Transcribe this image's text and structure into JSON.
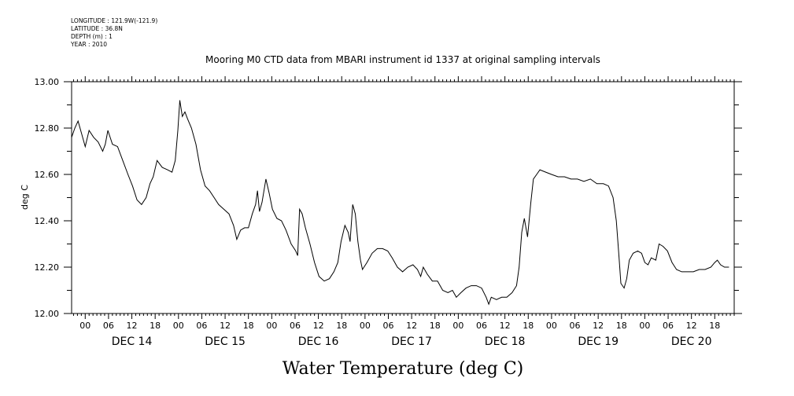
{
  "meta": {
    "longitude": "LONGITUDE : 121.9W(-121.9)",
    "latitude": "LATITUDE : 36.8N",
    "depth": "DEPTH (m) : 1",
    "year": "YEAR : 2010"
  },
  "chart_data": {
    "type": "line",
    "title": "Mooring M0 CTD data from MBARI instrument id 1337 at original sampling intervals",
    "xlabel": "Water Temperature (deg C)",
    "ylabel": "deg C",
    "ylim": [
      12.0,
      13.0
    ],
    "yticks": [
      "12.00",
      "12.20",
      "12.40",
      "12.60",
      "12.80",
      "13.00"
    ],
    "xlim": [
      "2010-12-13T20:30",
      "2010-12-20T23:00"
    ],
    "hour_labels": [
      "00",
      "06",
      "12",
      "18"
    ],
    "days": [
      {
        "date": "2010-12-14",
        "label": "DEC 14"
      },
      {
        "date": "2010-12-15",
        "label": "DEC 15"
      },
      {
        "date": "2010-12-16",
        "label": "DEC 16"
      },
      {
        "date": "2010-12-17",
        "label": "DEC 17"
      },
      {
        "date": "2010-12-18",
        "label": "DEC 18"
      },
      {
        "date": "2010-12-19",
        "label": "DEC 19"
      },
      {
        "date": "2010-12-20",
        "label": "DEC 20"
      }
    ],
    "grid": false,
    "series": [
      {
        "color": "#000000",
        "points": [
          [
            "2010-12-13T20:30",
            12.76
          ],
          [
            "2010-12-13T21:20",
            12.8
          ],
          [
            "2010-12-13T22:10",
            12.83
          ],
          [
            "2010-12-13T23:20",
            12.76
          ],
          [
            "2010-12-14T00:00",
            12.72
          ],
          [
            "2010-12-14T01:00",
            12.79
          ],
          [
            "2010-12-14T02:10",
            12.76
          ],
          [
            "2010-12-14T03:20",
            12.74
          ],
          [
            "2010-12-14T04:30",
            12.7
          ],
          [
            "2010-12-14T05:10",
            12.73
          ],
          [
            "2010-12-14T05:50",
            12.79
          ],
          [
            "2010-12-14T07:00",
            12.73
          ],
          [
            "2010-12-14T08:20",
            12.72
          ],
          [
            "2010-12-14T09:40",
            12.66
          ],
          [
            "2010-12-14T11:00",
            12.6
          ],
          [
            "2010-12-14T12:10",
            12.55
          ],
          [
            "2010-12-14T13:20",
            12.49
          ],
          [
            "2010-12-14T14:30",
            12.47
          ],
          [
            "2010-12-14T15:40",
            12.5
          ],
          [
            "2010-12-14T16:40",
            12.56
          ],
          [
            "2010-12-14T17:30",
            12.59
          ],
          [
            "2010-12-14T18:30",
            12.66
          ],
          [
            "2010-12-14T19:50",
            12.63
          ],
          [
            "2010-12-14T21:10",
            12.62
          ],
          [
            "2010-12-14T22:20",
            12.61
          ],
          [
            "2010-12-14T23:10",
            12.66
          ],
          [
            "2010-12-14T23:50",
            12.79
          ],
          [
            "2010-12-15T00:20",
            12.92
          ],
          [
            "2010-12-15T01:00",
            12.85
          ],
          [
            "2010-12-15T01:40",
            12.87
          ],
          [
            "2010-12-15T02:20",
            12.84
          ],
          [
            "2010-12-15T03:20",
            12.8
          ],
          [
            "2010-12-15T04:30",
            12.73
          ],
          [
            "2010-12-15T05:40",
            12.62
          ],
          [
            "2010-12-15T06:50",
            12.55
          ],
          [
            "2010-12-15T08:00",
            12.53
          ],
          [
            "2010-12-15T09:10",
            12.5
          ],
          [
            "2010-12-15T10:20",
            12.47
          ],
          [
            "2010-12-15T11:40",
            12.45
          ],
          [
            "2010-12-15T13:00",
            12.43
          ],
          [
            "2010-12-15T14:10",
            12.38
          ],
          [
            "2010-12-15T15:00",
            12.32
          ],
          [
            "2010-12-15T16:00",
            12.36
          ],
          [
            "2010-12-15T17:00",
            12.37
          ],
          [
            "2010-12-15T18:00",
            12.37
          ],
          [
            "2010-12-15T19:00",
            12.43
          ],
          [
            "2010-12-15T19:50",
            12.47
          ],
          [
            "2010-12-15T20:20",
            12.53
          ],
          [
            "2010-12-15T20:50",
            12.44
          ],
          [
            "2010-12-15T21:30",
            12.48
          ],
          [
            "2010-12-15T22:30",
            12.58
          ],
          [
            "2010-12-15T23:20",
            12.52
          ],
          [
            "2010-12-16T00:10",
            12.45
          ],
          [
            "2010-12-16T01:20",
            12.41
          ],
          [
            "2010-12-16T02:30",
            12.4
          ],
          [
            "2010-12-16T03:40",
            12.36
          ],
          [
            "2010-12-16T05:00",
            12.3
          ],
          [
            "2010-12-16T06:10",
            12.27
          ],
          [
            "2010-12-16T06:40",
            12.25
          ],
          [
            "2010-12-16T07:10",
            12.45
          ],
          [
            "2010-12-16T07:50",
            12.43
          ],
          [
            "2010-12-16T08:40",
            12.37
          ],
          [
            "2010-12-16T09:50",
            12.3
          ],
          [
            "2010-12-16T11:00",
            12.22
          ],
          [
            "2010-12-16T12:10",
            12.16
          ],
          [
            "2010-12-16T13:30",
            12.14
          ],
          [
            "2010-12-16T14:50",
            12.15
          ],
          [
            "2010-12-16T16:00",
            12.18
          ],
          [
            "2010-12-16T17:00",
            12.22
          ],
          [
            "2010-12-16T17:50",
            12.31
          ],
          [
            "2010-12-16T18:50",
            12.38
          ],
          [
            "2010-12-16T19:40",
            12.35
          ],
          [
            "2010-12-16T20:10",
            12.31
          ],
          [
            "2010-12-16T20:50",
            12.47
          ],
          [
            "2010-12-16T21:30",
            12.43
          ],
          [
            "2010-12-16T22:10",
            12.31
          ],
          [
            "2010-12-16T22:50",
            12.23
          ],
          [
            "2010-12-16T23:20",
            12.19
          ],
          [
            "2010-12-17T00:30",
            12.22
          ],
          [
            "2010-12-17T01:50",
            12.26
          ],
          [
            "2010-12-17T03:10",
            12.28
          ],
          [
            "2010-12-17T04:30",
            12.28
          ],
          [
            "2010-12-17T05:50",
            12.27
          ],
          [
            "2010-12-17T07:00",
            12.24
          ],
          [
            "2010-12-17T08:20",
            12.2
          ],
          [
            "2010-12-17T09:40",
            12.18
          ],
          [
            "2010-12-17T11:00",
            12.2
          ],
          [
            "2010-12-17T12:20",
            12.21
          ],
          [
            "2010-12-17T13:30",
            12.19
          ],
          [
            "2010-12-17T14:20",
            12.16
          ],
          [
            "2010-12-17T15:00",
            12.2
          ],
          [
            "2010-12-17T16:00",
            12.17
          ],
          [
            "2010-12-17T17:20",
            12.14
          ],
          [
            "2010-12-17T18:40",
            12.14
          ],
          [
            "2010-12-17T20:00",
            12.1
          ],
          [
            "2010-12-17T21:20",
            12.09
          ],
          [
            "2010-12-17T22:30",
            12.1
          ],
          [
            "2010-12-17T23:30",
            12.07
          ],
          [
            "2010-12-18T00:40",
            12.09
          ],
          [
            "2010-12-18T02:00",
            12.11
          ],
          [
            "2010-12-18T03:20",
            12.12
          ],
          [
            "2010-12-18T04:40",
            12.12
          ],
          [
            "2010-12-18T06:00",
            12.11
          ],
          [
            "2010-12-18T07:10",
            12.07
          ],
          [
            "2010-12-18T07:50",
            12.04
          ],
          [
            "2010-12-18T08:30",
            12.07
          ],
          [
            "2010-12-18T09:50",
            12.06
          ],
          [
            "2010-12-18T11:10",
            12.07
          ],
          [
            "2010-12-18T12:30",
            12.07
          ],
          [
            "2010-12-18T13:50",
            12.09
          ],
          [
            "2010-12-18T15:00",
            12.12
          ],
          [
            "2010-12-18T15:40",
            12.2
          ],
          [
            "2010-12-18T16:20",
            12.35
          ],
          [
            "2010-12-18T17:00",
            12.41
          ],
          [
            "2010-12-18T17:50",
            12.33
          ],
          [
            "2010-12-18T18:40",
            12.48
          ],
          [
            "2010-12-18T19:20",
            12.58
          ],
          [
            "2010-12-18T20:10",
            12.6
          ],
          [
            "2010-12-18T21:00",
            12.62
          ],
          [
            "2010-12-18T22:30",
            12.61
          ],
          [
            "2010-12-19T00:00",
            12.6
          ],
          [
            "2010-12-19T01:40",
            12.59
          ],
          [
            "2010-12-19T03:20",
            12.59
          ],
          [
            "2010-12-19T05:00",
            12.58
          ],
          [
            "2010-12-19T06:40",
            12.58
          ],
          [
            "2010-12-19T08:20",
            12.57
          ],
          [
            "2010-12-19T10:00",
            12.58
          ],
          [
            "2010-12-19T11:40",
            12.56
          ],
          [
            "2010-12-19T13:20",
            12.56
          ],
          [
            "2010-12-19T14:40",
            12.55
          ],
          [
            "2010-12-19T15:50",
            12.5
          ],
          [
            "2010-12-19T16:40",
            12.4
          ],
          [
            "2010-12-19T17:20",
            12.25
          ],
          [
            "2010-12-19T17:50",
            12.13
          ],
          [
            "2010-12-19T18:40",
            12.11
          ],
          [
            "2010-12-19T19:20",
            12.15
          ],
          [
            "2010-12-19T20:00",
            12.23
          ],
          [
            "2010-12-19T21:00",
            12.26
          ],
          [
            "2010-12-19T22:10",
            12.27
          ],
          [
            "2010-12-19T23:10",
            12.26
          ],
          [
            "2010-12-20T00:00",
            12.22
          ],
          [
            "2010-12-20T00:50",
            12.21
          ],
          [
            "2010-12-20T01:40",
            12.24
          ],
          [
            "2010-12-20T02:50",
            12.23
          ],
          [
            "2010-12-20T03:40",
            12.3
          ],
          [
            "2010-12-20T04:40",
            12.29
          ],
          [
            "2010-12-20T05:50",
            12.27
          ],
          [
            "2010-12-20T07:00",
            12.22
          ],
          [
            "2010-12-20T08:10",
            12.19
          ],
          [
            "2010-12-20T09:30",
            12.18
          ],
          [
            "2010-12-20T11:00",
            12.18
          ],
          [
            "2010-12-20T12:30",
            12.18
          ],
          [
            "2010-12-20T14:00",
            12.19
          ],
          [
            "2010-12-20T15:30",
            12.19
          ],
          [
            "2010-12-20T17:00",
            12.2
          ],
          [
            "2010-12-20T18:00",
            12.22
          ],
          [
            "2010-12-20T18:40",
            12.23
          ],
          [
            "2010-12-20T19:30",
            12.21
          ],
          [
            "2010-12-20T20:30",
            12.2
          ],
          [
            "2010-12-20T21:40",
            12.2
          ]
        ]
      }
    ]
  }
}
